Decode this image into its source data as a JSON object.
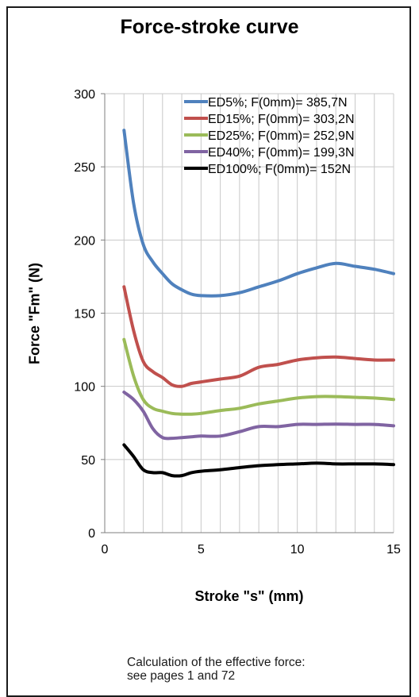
{
  "chart_data": {
    "type": "line",
    "title": "Force-stroke curve",
    "xlabel": "Stroke \"s\" (mm)",
    "ylabel": "Force \"Fm\" (N)",
    "xlim": [
      0,
      15
    ],
    "ylim": [
      0,
      300
    ],
    "xticks": [
      "0",
      "5",
      "10",
      "15"
    ],
    "yticks": [
      "0",
      "50",
      "100",
      "150",
      "200",
      "250",
      "300"
    ],
    "grid": true,
    "legend_position": "top-right",
    "series": [
      {
        "name": "ED5%; F(0mm)= 385,7N",
        "color": "#4f81bd",
        "x": [
          1,
          1.5,
          2,
          2.5,
          3,
          3.5,
          4,
          4.5,
          5,
          6,
          7,
          8,
          9,
          10,
          11,
          12,
          13,
          14,
          15
        ],
        "y": [
          275,
          225,
          197,
          185,
          177,
          170,
          166,
          163,
          162,
          162,
          164,
          168,
          172,
          177,
          181,
          184,
          182,
          180,
          177
        ]
      },
      {
        "name": "ED15%; F(0mm)= 303,2N",
        "color": "#c0504d",
        "x": [
          1,
          1.5,
          2,
          2.5,
          3,
          3.5,
          4,
          4.5,
          5,
          6,
          7,
          8,
          9,
          10,
          11,
          12,
          13,
          14,
          15
        ],
        "y": [
          168,
          138,
          117,
          110,
          106,
          101,
          100,
          102,
          103,
          105,
          107,
          113,
          115,
          118,
          119.5,
          120,
          119,
          118,
          118
        ]
      },
      {
        "name": "ED25%; F(0mm)= 252,9N",
        "color": "#9bbb59",
        "x": [
          1,
          1.5,
          2,
          2.5,
          3,
          3.5,
          4,
          4.5,
          5,
          6,
          7,
          8,
          9,
          10,
          11,
          12,
          13,
          14,
          15
        ],
        "y": [
          132,
          107,
          91,
          85,
          83,
          81.5,
          81,
          81,
          81.5,
          83.5,
          85,
          88,
          90,
          92,
          93,
          93,
          92.5,
          92,
          91
        ]
      },
      {
        "name": "ED40%; F(0mm)= 199,3N",
        "color": "#8064a2",
        "x": [
          1,
          1.5,
          2,
          2.5,
          3,
          3.5,
          4,
          4.5,
          5,
          6,
          7,
          8,
          9,
          10,
          11,
          12,
          13,
          14,
          15
        ],
        "y": [
          96,
          91,
          83,
          71,
          65,
          64.5,
          65,
          65.5,
          66,
          66,
          69,
          72.5,
          72.5,
          74,
          74,
          74.2,
          74,
          74,
          73
        ]
      },
      {
        "name": "ED100%; F(0mm)= 152N",
        "color": "#000000",
        "x": [
          1,
          1.5,
          2,
          2.5,
          3,
          3.5,
          4,
          4.5,
          5,
          6,
          7,
          8,
          9,
          10,
          11,
          12,
          13,
          14,
          15
        ],
        "y": [
          60,
          52,
          43,
          41,
          41,
          39,
          39,
          41,
          42,
          43,
          44.5,
          45.8,
          46.5,
          47,
          47.5,
          47,
          47,
          47,
          46.5
        ]
      }
    ]
  },
  "note": {
    "line1": "Calculation of the effective force:",
    "line2": "see pages 1 and 72"
  }
}
